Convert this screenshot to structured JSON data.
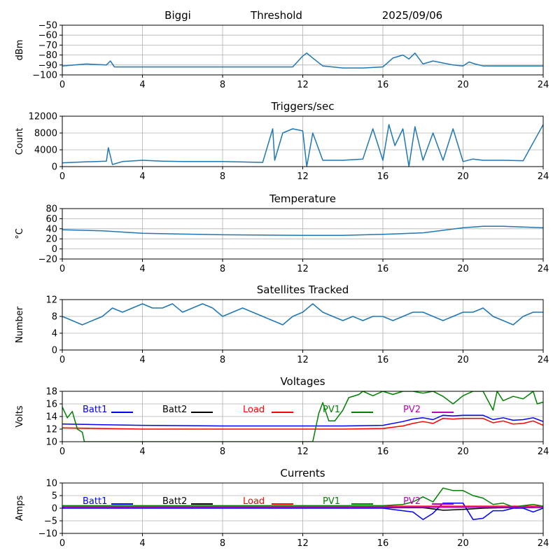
{
  "header": {
    "station": "Biggi",
    "mode": "Threshold",
    "date": "2025/09/06"
  },
  "colors": {
    "series": "#1f77b4",
    "grid": "#b0b0b0",
    "axis": "#000000",
    "batt1": "#0000ff",
    "batt2": "#000000",
    "load": "#ff0000",
    "pv1": "#008000",
    "pv2": "#bf00bf"
  },
  "chart_data": [
    {
      "id": "threshold",
      "type": "line",
      "title": "",
      "ylabel": "dBm",
      "xlim": [
        0,
        24
      ],
      "ylim": [
        -100,
        -50
      ],
      "xticks": [
        0,
        4,
        8,
        12,
        16,
        20,
        24
      ],
      "yticks": [
        -100,
        -90,
        -80,
        -70,
        -60,
        -50
      ],
      "grid": true,
      "series": [
        {
          "name": "",
          "color": "#1f77b4",
          "x": [
            0,
            1.2,
            2.2,
            2.4,
            2.6,
            4,
            8,
            11.5,
            12,
            12.2,
            12.5,
            13,
            14,
            15,
            16,
            16.5,
            17,
            17.3,
            17.6,
            18,
            18.5,
            19,
            19.5,
            20,
            20.3,
            20.6,
            21,
            22,
            23,
            24
          ],
          "y": [
            -91,
            -89,
            -90,
            -86,
            -92,
            -92,
            -92,
            -92,
            -81,
            -78,
            -83,
            -91,
            -93,
            -93,
            -92,
            -83,
            -80,
            -84,
            -78,
            -89,
            -86,
            -88,
            -90,
            -91,
            -87,
            -89,
            -91,
            -91,
            -91,
            -91
          ]
        }
      ]
    },
    {
      "id": "triggers",
      "type": "line",
      "title": "Triggers/sec",
      "ylabel": "Count",
      "xlim": [
        0,
        24
      ],
      "ylim": [
        0,
        12000
      ],
      "xticks": [
        0,
        4,
        8,
        12,
        16,
        20,
        24
      ],
      "yticks": [
        0,
        4000,
        8000,
        12000
      ],
      "grid": true,
      "series": [
        {
          "name": "",
          "color": "#1f77b4",
          "x": [
            0,
            1,
            2.2,
            2.3,
            2.5,
            3,
            4,
            5,
            6,
            8,
            10,
            10.5,
            10.6,
            11,
            11.5,
            12,
            12.2,
            12.5,
            13,
            14,
            15,
            15.5,
            16,
            16.3,
            16.6,
            17,
            17.3,
            17.6,
            18,
            18.5,
            19,
            19.5,
            20,
            20.5,
            21,
            22,
            23,
            24
          ],
          "y": [
            900,
            1100,
            1300,
            4500,
            500,
            1200,
            1500,
            1300,
            1200,
            1200,
            1000,
            9000,
            1500,
            8000,
            9000,
            8500,
            0,
            8000,
            1500,
            1500,
            1800,
            9000,
            1500,
            10000,
            5000,
            9000,
            0,
            9500,
            1500,
            8000,
            1500,
            9000,
            1200,
            1800,
            1500,
            1500,
            1400,
            10000
          ]
        }
      ]
    },
    {
      "id": "temperature",
      "type": "line",
      "title": "Temperature",
      "ylabel": "°C",
      "xlim": [
        0,
        24
      ],
      "ylim": [
        -20,
        80
      ],
      "xticks": [
        0,
        4,
        8,
        12,
        16,
        20,
        24
      ],
      "yticks": [
        -20,
        0,
        20,
        40,
        60,
        80
      ],
      "grid": true,
      "series": [
        {
          "name": "",
          "color": "#1f77b4",
          "x": [
            0,
            2,
            4,
            8,
            12,
            14,
            16,
            18,
            20,
            21,
            22,
            24
          ],
          "y": [
            38,
            36,
            31,
            28,
            27,
            27,
            29,
            32,
            42,
            45,
            45,
            42
          ]
        }
      ]
    },
    {
      "id": "satellites",
      "type": "line",
      "title": "Satellites Tracked",
      "ylabel": "Number",
      "xlim": [
        0,
        24
      ],
      "ylim": [
        0,
        12
      ],
      "xticks": [
        0,
        4,
        8,
        12,
        16,
        20,
        24
      ],
      "yticks": [
        0,
        4,
        8,
        12
      ],
      "grid": true,
      "series": [
        {
          "name": "",
          "color": "#1f77b4",
          "x": [
            0,
            0.5,
            1,
            1.5,
            2,
            2.5,
            3,
            3.5,
            4,
            4.5,
            5,
            5.5,
            6,
            6.5,
            7,
            7.5,
            8,
            8.5,
            9,
            9.5,
            10,
            10.5,
            11,
            11.5,
            12,
            12.5,
            13,
            13.5,
            14,
            14.5,
            15,
            15.5,
            16,
            16.5,
            17,
            17.5,
            18,
            18.5,
            19,
            19.5,
            20,
            20.5,
            21,
            21.5,
            22,
            22.5,
            23,
            23.5,
            24
          ],
          "y": [
            8,
            7,
            6,
            7,
            8,
            10,
            9,
            10,
            11,
            10,
            10,
            11,
            9,
            10,
            11,
            10,
            8,
            9,
            10,
            9,
            8,
            7,
            6,
            8,
            9,
            11,
            9,
            8,
            7,
            8,
            7,
            8,
            8,
            7,
            8,
            9,
            9,
            8,
            7,
            8,
            9,
            9,
            10,
            8,
            7,
            6,
            8,
            9,
            9
          ]
        }
      ]
    },
    {
      "id": "voltages",
      "type": "line",
      "title": "Voltages",
      "ylabel": "Volts",
      "xlim": [
        0,
        24
      ],
      "ylim": [
        10,
        18
      ],
      "xticks": [
        0,
        4,
        8,
        12,
        16,
        20,
        24
      ],
      "yticks": [
        10,
        12,
        14,
        16,
        18
      ],
      "grid": true,
      "legend": "top",
      "series": [
        {
          "name": "Batt1",
          "color": "#0000ff",
          "x": [
            0,
            2,
            4,
            8,
            12,
            14,
            16,
            17,
            17.5,
            18,
            18.5,
            19,
            19.5,
            20,
            21,
            21.5,
            22,
            22.5,
            23,
            23.5,
            24
          ],
          "y": [
            12.8,
            12.7,
            12.6,
            12.5,
            12.5,
            12.5,
            12.6,
            13.2,
            13.6,
            13.8,
            13.5,
            14.2,
            14.1,
            14.2,
            14.2,
            13.5,
            13.8,
            13.4,
            13.5,
            13.8,
            13.2
          ]
        },
        {
          "name": "Batt2",
          "color": "#000000",
          "x": [],
          "y": []
        },
        {
          "name": "Load",
          "color": "#ff0000",
          "x": [
            0,
            2,
            4,
            8,
            12,
            14,
            16,
            17,
            17.5,
            18,
            18.5,
            19,
            19.5,
            20,
            21,
            21.5,
            22,
            22.5,
            23,
            23.5,
            24
          ],
          "y": [
            12.2,
            12.1,
            12.0,
            12.0,
            12.0,
            12.0,
            12.1,
            12.5,
            12.9,
            13.2,
            12.9,
            13.7,
            13.6,
            13.7,
            13.7,
            13.0,
            13.3,
            12.8,
            12.9,
            13.3,
            12.6
          ]
        },
        {
          "name": "PV1",
          "color": "#008000",
          "x": [
            0,
            0.25,
            0.5,
            0.75,
            1,
            1.1,
            12.5,
            12.8,
            13,
            13.3,
            13.6,
            14,
            14.3,
            14.8,
            15,
            15.5,
            16,
            16.5,
            17,
            17.5,
            18,
            18.5,
            19,
            19.5,
            20,
            20.5,
            21,
            21.5,
            21.7,
            22,
            22.5,
            23,
            23.3,
            23.5,
            23.7,
            24
          ],
          "y": [
            15.5,
            13.8,
            14.8,
            12.0,
            11.5,
            10,
            10,
            14.5,
            16.2,
            13.3,
            13.3,
            15.0,
            17.0,
            17.5,
            18.0,
            17.3,
            18.0,
            17.5,
            18.0,
            18.0,
            17.7,
            18.0,
            17.2,
            16.0,
            17.3,
            18.0,
            18.0,
            15.0,
            18.0,
            16.5,
            17.2,
            16.8,
            17.5,
            18.0,
            16.0,
            16.3
          ]
        },
        {
          "name": "PV2",
          "color": "#bf00bf",
          "x": [],
          "y": []
        }
      ]
    },
    {
      "id": "currents",
      "type": "line",
      "title": "Currents",
      "ylabel": "Amps",
      "xlim": [
        0,
        24
      ],
      "ylim": [
        -10,
        10
      ],
      "xticks": [
        0,
        4,
        8,
        12,
        16,
        20,
        24
      ],
      "yticks": [
        -10,
        -5,
        0,
        5,
        10
      ],
      "grid": true,
      "legend": "top",
      "series": [
        {
          "name": "Batt1",
          "color": "#0000ff",
          "x": [
            0,
            16,
            17,
            17.5,
            18,
            18.5,
            19,
            19.5,
            20,
            20.5,
            21,
            21.5,
            22,
            22.5,
            23,
            23.5,
            24
          ],
          "y": [
            0,
            0,
            -1,
            -1.5,
            -4.5,
            -2,
            2,
            2,
            2,
            -4.5,
            -4,
            -1,
            -1,
            0,
            0,
            -1.5,
            0
          ]
        },
        {
          "name": "Batt2",
          "color": "#000000",
          "x": [
            0,
            18,
            19,
            20,
            21,
            22,
            24
          ],
          "y": [
            0.3,
            0.2,
            -0.8,
            -0.5,
            0,
            0.2,
            0.3
          ]
        },
        {
          "name": "Load",
          "color": "#ff0000",
          "x": [
            0,
            24
          ],
          "y": [
            0.8,
            0.8
          ]
        },
        {
          "name": "PV1",
          "color": "#008000",
          "x": [
            0,
            16,
            17,
            17.5,
            18,
            18.5,
            19,
            19.5,
            20,
            20.5,
            21,
            21.5,
            22,
            22.5,
            23,
            23.5,
            24
          ],
          "y": [
            1,
            1,
            1.5,
            2.5,
            4.5,
            2.5,
            8,
            7,
            7,
            5,
            4,
            1.5,
            2,
            0.5,
            1,
            1.5,
            0.8
          ]
        },
        {
          "name": "PV2",
          "color": "#bf00bf",
          "x": [
            0,
            24
          ],
          "y": [
            0.4,
            0.4
          ]
        }
      ]
    }
  ]
}
